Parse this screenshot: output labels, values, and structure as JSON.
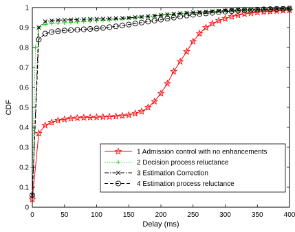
{
  "chart_data": {
    "type": "line",
    "xlabel": "Delay (ms)",
    "ylabel": "CDF",
    "xlim": [
      0,
      400
    ],
    "ylim": [
      0,
      1
    ],
    "xticks": [
      0,
      50,
      100,
      150,
      200,
      250,
      300,
      350,
      400
    ],
    "yticks": [
      0,
      0.1,
      0.2,
      0.3,
      0.4,
      0.5,
      0.6,
      0.7,
      0.8,
      0.9,
      1
    ],
    "ytick_labels": [
      "0",
      "0.1",
      "0.2",
      "0.3",
      "0.4",
      "0.5",
      "0.6",
      "0.7",
      "0.8",
      "0.9",
      "1"
    ],
    "grid": false,
    "legend_position": "bottom-right",
    "colors": {
      "s1": "#ff0000",
      "s2": "#00cc00",
      "s3": "#000000",
      "s4": "#000000"
    },
    "series": [
      {
        "name": "1 Admission control with no enhancements",
        "marker": "star",
        "line": "solid",
        "color": "#ff0000",
        "x": [
          0,
          10,
          20,
          30,
          40,
          50,
          60,
          70,
          80,
          90,
          100,
          110,
          120,
          130,
          140,
          150,
          160,
          170,
          180,
          190,
          200,
          210,
          220,
          230,
          240,
          250,
          260,
          270,
          280,
          290,
          300,
          310,
          320,
          330,
          340,
          350,
          360,
          370,
          380,
          390,
          400
        ],
        "y": [
          0.04,
          0.37,
          0.41,
          0.425,
          0.435,
          0.44,
          0.445,
          0.447,
          0.449,
          0.45,
          0.451,
          0.452,
          0.453,
          0.455,
          0.458,
          0.462,
          0.47,
          0.48,
          0.5,
          0.53,
          0.57,
          0.62,
          0.68,
          0.73,
          0.78,
          0.83,
          0.87,
          0.9,
          0.92,
          0.935,
          0.945,
          0.955,
          0.962,
          0.968,
          0.972,
          0.976,
          0.979,
          0.981,
          0.983,
          0.985,
          0.987
        ]
      },
      {
        "name": "2 Decision process reluctance",
        "marker": "plus",
        "line": "dotted",
        "color": "#00cc00",
        "x": [
          0,
          5,
          10,
          20,
          30,
          40,
          50,
          60,
          70,
          80,
          90,
          100,
          110,
          120,
          130,
          140,
          150,
          160,
          170,
          180,
          190,
          200,
          210,
          220,
          230,
          240,
          250,
          260,
          270,
          280,
          290,
          300,
          310,
          320,
          330,
          340,
          350,
          360,
          370,
          380,
          390,
          400
        ],
        "y": [
          0.2,
          0.8,
          0.9,
          0.915,
          0.92,
          0.922,
          0.924,
          0.926,
          0.928,
          0.93,
          0.932,
          0.934,
          0.936,
          0.938,
          0.94,
          0.943,
          0.946,
          0.949,
          0.952,
          0.955,
          0.958,
          0.961,
          0.964,
          0.967,
          0.97,
          0.972,
          0.974,
          0.976,
          0.978,
          0.98,
          0.982,
          0.984,
          0.986,
          0.987,
          0.988,
          0.989,
          0.99,
          0.991,
          0.992,
          0.993,
          0.994,
          0.995
        ]
      },
      {
        "name": "3 Estimation Correction",
        "marker": "x",
        "line": "dashdot",
        "color": "#000000",
        "x": [
          0,
          10,
          20,
          30,
          40,
          50,
          60,
          70,
          80,
          90,
          100,
          110,
          120,
          130,
          140,
          150,
          160,
          170,
          180,
          190,
          200,
          210,
          220,
          230,
          240,
          250,
          260,
          270,
          280,
          290,
          300,
          310,
          320,
          330,
          340,
          350,
          360,
          370,
          380,
          390,
          400
        ],
        "y": [
          0.06,
          0.9,
          0.93,
          0.935,
          0.937,
          0.938,
          0.939,
          0.94,
          0.941,
          0.942,
          0.943,
          0.944,
          0.945,
          0.946,
          0.947,
          0.949,
          0.951,
          0.953,
          0.956,
          0.959,
          0.962,
          0.965,
          0.968,
          0.971,
          0.973,
          0.975,
          0.977,
          0.979,
          0.981,
          0.983,
          0.985,
          0.987,
          0.988,
          0.989,
          0.99,
          0.991,
          0.992,
          0.993,
          0.994,
          0.995,
          0.996
        ]
      },
      {
        "name": "4 Estimation process reluctance",
        "marker": "circle",
        "line": "dashed",
        "color": "#000000",
        "x": [
          0,
          10,
          20,
          30,
          40,
          50,
          60,
          70,
          80,
          90,
          100,
          110,
          120,
          130,
          140,
          150,
          160,
          170,
          180,
          190,
          200,
          210,
          220,
          230,
          240,
          250,
          260,
          270,
          280,
          290,
          300,
          310,
          320,
          330,
          340,
          350,
          360,
          370,
          380,
          390,
          400
        ],
        "y": [
          0.06,
          0.84,
          0.87,
          0.877,
          0.882,
          0.885,
          0.887,
          0.889,
          0.891,
          0.893,
          0.895,
          0.898,
          0.902,
          0.906,
          0.91,
          0.915,
          0.92,
          0.925,
          0.93,
          0.935,
          0.94,
          0.945,
          0.95,
          0.955,
          0.96,
          0.964,
          0.968,
          0.971,
          0.974,
          0.977,
          0.98,
          0.982,
          0.984,
          0.986,
          0.988,
          0.99,
          0.991,
          0.992,
          0.993,
          0.994,
          0.995
        ]
      }
    ]
  }
}
